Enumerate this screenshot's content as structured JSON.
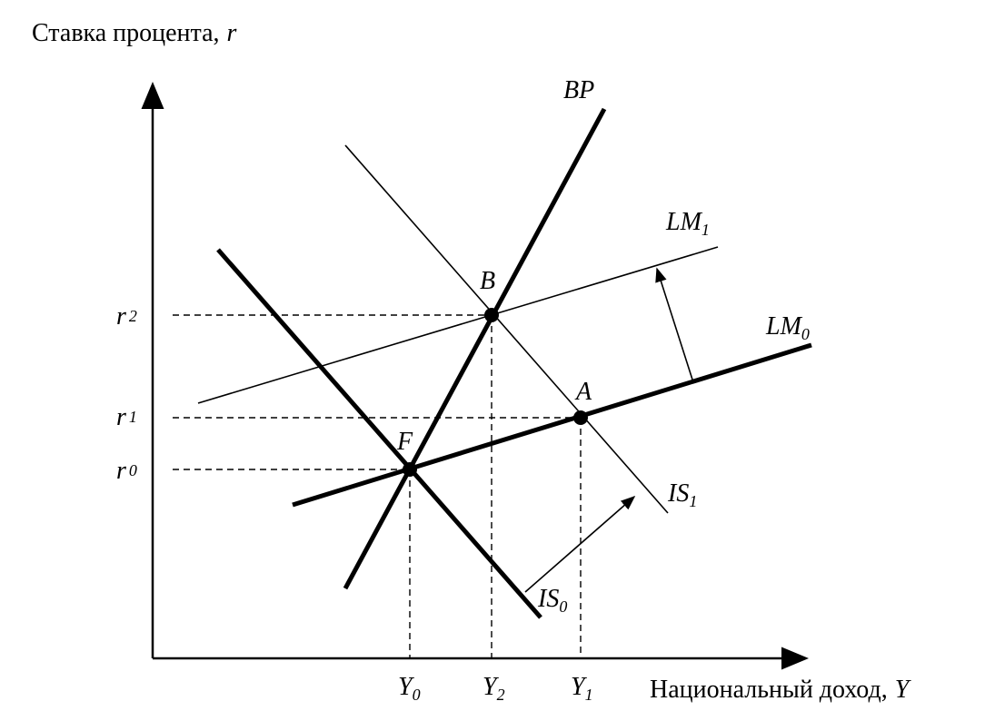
{
  "axes": {
    "y_label": {
      "text": "Ставка процента,",
      "var": "r"
    },
    "x_label": {
      "text": "Национальный доход,",
      "var": "Y"
    }
  },
  "curves": [
    {
      "name": "BP"
    },
    {
      "name": "LM",
      "sub": "1"
    },
    {
      "name": "LM",
      "sub": "0"
    },
    {
      "name": "IS",
      "sub": "1"
    },
    {
      "name": "IS",
      "sub": "0"
    }
  ],
  "points": [
    "B",
    "A",
    "F"
  ],
  "r_ticks": [
    {
      "name": "r",
      "sub": "2"
    },
    {
      "name": "r",
      "sub": "1"
    },
    {
      "name": "r",
      "sub": "0"
    }
  ],
  "y_ticks": [
    {
      "name": "Y",
      "sub": "0"
    },
    {
      "name": "Y",
      "sub": "2"
    },
    {
      "name": "Y",
      "sub": "1"
    }
  ]
}
